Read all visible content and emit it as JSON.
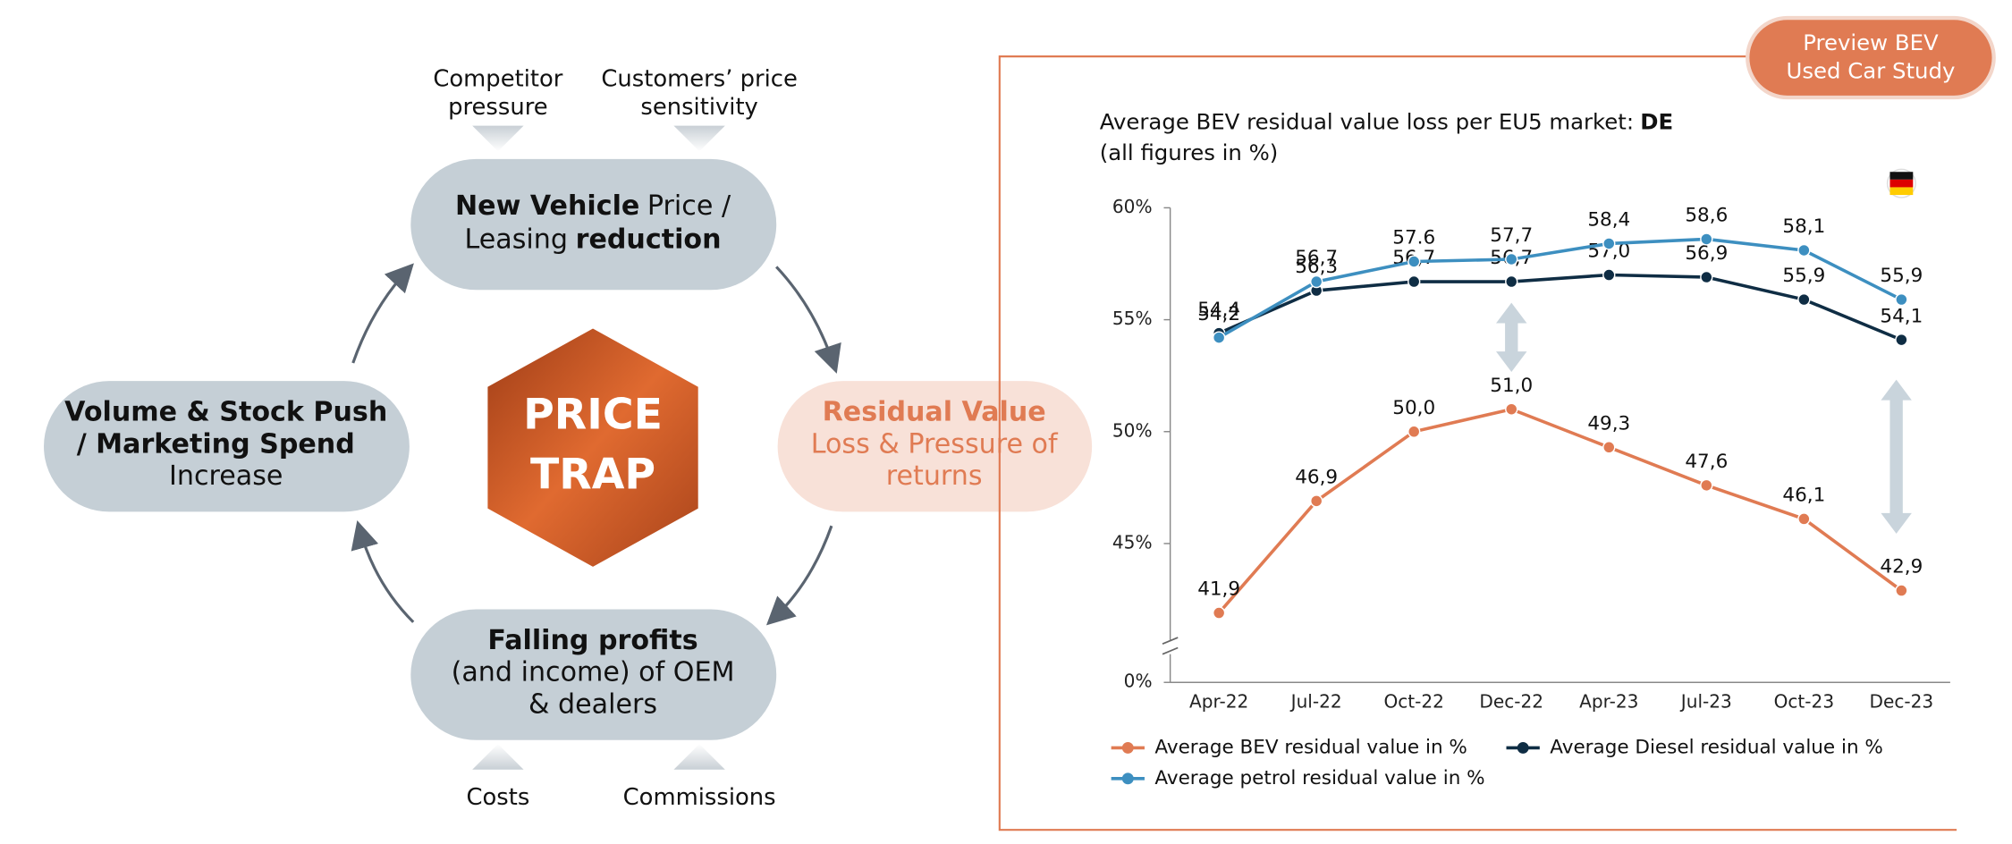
{
  "diagram": {
    "top_inputs": [
      [
        "Competitor",
        "pressure"
      ],
      [
        "Customers’ price",
        "sensitivity"
      ]
    ],
    "bottom_inputs": [
      "Costs",
      "Commissions"
    ],
    "center": [
      "PRICE",
      "TRAP"
    ],
    "top_node": [
      [
        "New Vehicle",
        "Price /"
      ],
      [
        "Leasing",
        "reduction"
      ]
    ],
    "left_node": [
      "Volume & Stock Push",
      "/ Marketing Spend",
      "Increase"
    ],
    "right_node": [
      "Residual Value",
      "Loss & Pressure of",
      "returns"
    ],
    "bottom_node": [
      "Falling profits",
      "(and income) of OEM",
      "& dealers"
    ]
  },
  "badge": [
    "Preview BEV",
    "Used Car Study"
  ],
  "chart_data": {
    "type": "line",
    "title": "Average BEV residual value loss per EU5 market:",
    "title_bold": "DE",
    "subtitle": "(all figures in %)",
    "categories": [
      "Apr-22",
      "Jul-22",
      "Oct-22",
      "Dec-22",
      "Apr-23",
      "Jul-23",
      "Oct-23",
      "Dec-23"
    ],
    "series": [
      {
        "name": "Average BEV residual value in %",
        "color": "#e07b53",
        "values": [
          41.9,
          46.9,
          50.0,
          51.0,
          49.3,
          47.6,
          46.1,
          42.9
        ],
        "value_labels": [
          "41,9",
          "46,9",
          "50,0",
          "51,0",
          "49,3",
          "47,6",
          "46,1",
          "42,9"
        ]
      },
      {
        "name": "Average Diesel residual value in %",
        "color": "#0f2d44",
        "values": [
          54.4,
          56.3,
          56.7,
          56.7,
          57.0,
          56.9,
          55.9,
          54.1
        ],
        "value_labels": [
          "54,4",
          "56,3",
          "56,7",
          "56,7",
          "57,0",
          "56,9",
          "55,9",
          "54,1"
        ]
      },
      {
        "name": "Average petrol residual value in %",
        "color": "#3d8fc0",
        "values": [
          54.2,
          56.7,
          57.6,
          57.7,
          58.4,
          58.6,
          58.1,
          55.9
        ],
        "value_labels": [
          "54,2",
          "56,7",
          "57.6",
          "57,7",
          "58,4",
          "58,6",
          "58,1",
          "55,9"
        ]
      }
    ],
    "ylim": [
      0,
      60
    ],
    "y_break": [
      0,
      40
    ],
    "yticks": [
      {
        "value": 0,
        "label": "0%"
      },
      {
        "value": 45,
        "label": "45%"
      },
      {
        "value": 50,
        "label": "50%"
      },
      {
        "value": 55,
        "label": "55%"
      },
      {
        "value": 60,
        "label": "60%"
      }
    ],
    "grid": false,
    "legend": "bottom"
  }
}
